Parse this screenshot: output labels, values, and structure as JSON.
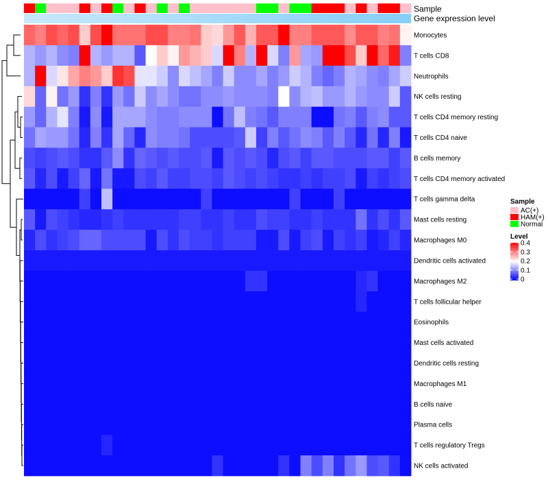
{
  "chart_data": {
    "type": "heatmap",
    "annotation_rows": {
      "sample": "Sample",
      "gene": "Gene expression level"
    },
    "columns_sample": [
      "HAM(+)",
      "Normal",
      "AC(+)",
      "AC(+)",
      "AC(+)",
      "HAM(+)",
      "AC(+)",
      "HAM(+)",
      "Normal",
      "AC(+)",
      "HAM(+)",
      "AC(+)",
      "Normal",
      "AC(+)",
      "Normal",
      "AC(+)",
      "AC(+)",
      "AC(+)",
      "AC(+)",
      "AC(+)",
      "AC(+)",
      "Normal",
      "Normal",
      "AC(+)",
      "Normal",
      "Normal",
      "HAM(+)",
      "HAM(+)",
      "HAM(+)",
      "AC(+)",
      "HAM(+)",
      "AC(+)",
      "HAM(+)",
      "HAM(+)",
      "AC(+)"
    ],
    "rows": [
      "Monocytes",
      "T cells CD8",
      "Neutrophils",
      "NK cells resting",
      "T cells CD4 memory resting",
      "T cells CD4 naive",
      "B cells memory",
      "T cells CD4 memory activated",
      "T cells gamma delta",
      "Mast cells resting",
      "Macrophages M0",
      "Dendritic cells activated",
      "Macrophages M2",
      "T cells follicular helper",
      "Eosinophils",
      "Mast cells activated",
      "Dendritic cells resting",
      "Macrophages M1",
      "B cells naive",
      "Plasma cells",
      "T cells regulatory  Tregs",
      "NK cells activated"
    ],
    "values": [
      [
        0.32,
        0.3,
        0.34,
        0.32,
        0.34,
        0.24,
        0.34,
        0.4,
        0.31,
        0.31,
        0.31,
        0.34,
        0.34,
        0.3,
        0.3,
        0.31,
        0.24,
        0.23,
        0.28,
        0.33,
        0.26,
        0.33,
        0.33,
        0.4,
        0.3,
        0.3,
        0.33,
        0.33,
        0.33,
        0.29,
        0.33,
        0.33,
        0.3,
        0.31,
        0.21
      ],
      [
        0.14,
        0.12,
        0.14,
        0.11,
        0.1,
        0.4,
        0.14,
        0.12,
        0.14,
        0.14,
        0.07,
        0.2,
        0.24,
        0.21,
        0.28,
        0.26,
        0.24,
        0.17,
        0.4,
        0.3,
        0.14,
        0.4,
        0.17,
        0.1,
        0.28,
        0.13,
        0.12,
        0.4,
        0.4,
        0.34,
        0.24,
        0.4,
        0.32,
        0.38,
        0.1
      ],
      [
        0.14,
        0.4,
        0.17,
        0.22,
        0.27,
        0.3,
        0.28,
        0.24,
        0.36,
        0.34,
        0.18,
        0.18,
        0.16,
        0.11,
        0.17,
        0.15,
        0.13,
        0.1,
        0.16,
        0.11,
        0.11,
        0.13,
        0.1,
        0.12,
        0.16,
        0.14,
        0.1,
        0.08,
        0.1,
        0.14,
        0.13,
        0.11,
        0.1,
        0.13,
        0.16
      ],
      [
        0.23,
        0.08,
        0.21,
        0.09,
        0.12,
        0.04,
        0.1,
        0.04,
        0.12,
        0.09,
        0.16,
        0.11,
        0.13,
        0.11,
        0.09,
        0.09,
        0.11,
        0.11,
        0.12,
        0.11,
        0.11,
        0.11,
        0.1,
        0.2,
        0.11,
        0.14,
        0.15,
        0.12,
        0.12,
        0.14,
        0.12,
        0.11,
        0.11,
        0.16,
        0.07
      ],
      [
        0.12,
        0.08,
        0.14,
        0.18,
        0.1,
        0.02,
        0.11,
        0.02,
        0.13,
        0.13,
        0.13,
        0.11,
        0.1,
        0.1,
        0.11,
        0.11,
        0.11,
        0.01,
        0.09,
        0.15,
        0.1,
        0.09,
        0.07,
        0.1,
        0.1,
        0.1,
        0.01,
        0.01,
        0.09,
        0.1,
        0.07,
        0.1,
        0.11,
        0.07,
        0.07
      ],
      [
        0.09,
        0.13,
        0.12,
        0.12,
        0.09,
        0.03,
        0.1,
        0.04,
        0.13,
        0.08,
        0.03,
        0.11,
        0.1,
        0.1,
        0.09,
        0.06,
        0.06,
        0.06,
        0.06,
        0.07,
        0.16,
        0.05,
        0.1,
        0.07,
        0.09,
        0.11,
        0.1,
        0.07,
        0.1,
        0.07,
        0.03,
        0.09,
        0.03,
        0.1,
        0.02
      ],
      [
        0.06,
        0.05,
        0.06,
        0.07,
        0.06,
        0.04,
        0.04,
        0.07,
        0.11,
        0.04,
        0.08,
        0.07,
        0.06,
        0.07,
        0.06,
        0.06,
        0.07,
        0.02,
        0.07,
        0.06,
        0.07,
        0.06,
        0.03,
        0.06,
        0.07,
        0.05,
        0.07,
        0.07,
        0.06,
        0.06,
        0.06,
        0.07,
        0.07,
        0.05,
        0.07
      ],
      [
        0.07,
        0.03,
        0.06,
        0.02,
        0.05,
        0.08,
        0.02,
        0.09,
        0.02,
        0.02,
        0.06,
        0.05,
        0.07,
        0.05,
        0.05,
        0.06,
        0.06,
        0.05,
        0.07,
        0.06,
        0.05,
        0.06,
        0.05,
        0.04,
        0.04,
        0.05,
        0.04,
        0.05,
        0.05,
        0.06,
        0.02,
        0.05,
        0.04,
        0.05,
        0.06
      ],
      [
        0.01,
        0.01,
        0.01,
        0.01,
        0.01,
        0.05,
        0.01,
        0.15,
        0.01,
        0.01,
        0.01,
        0.01,
        0.01,
        0.01,
        0.01,
        0.01,
        0.05,
        0.01,
        0.01,
        0.01,
        0.01,
        0.01,
        0.01,
        0.01,
        0.05,
        0.01,
        0.01,
        0.01,
        0.05,
        0.01,
        0.01,
        0.01,
        0.01,
        0.01,
        0.01
      ],
      [
        0.07,
        0.02,
        0.06,
        0.05,
        0.04,
        0.03,
        0.03,
        0.04,
        0.05,
        0.04,
        0.04,
        0.04,
        0.04,
        0.04,
        0.05,
        0.05,
        0.04,
        0.04,
        0.05,
        0.04,
        0.04,
        0.06,
        0.05,
        0.05,
        0.04,
        0.04,
        0.05,
        0.04,
        0.04,
        0.04,
        0.09,
        0.04,
        0.06,
        0.04,
        0.07
      ],
      [
        0.03,
        0.06,
        0.04,
        0.05,
        0.06,
        0.08,
        0.08,
        0.06,
        0.06,
        0.06,
        0.06,
        0.02,
        0.06,
        0.04,
        0.06,
        0.05,
        0.05,
        0.04,
        0.05,
        0.05,
        0.05,
        0.02,
        0.02,
        0.06,
        0.02,
        0.05,
        0.06,
        0.02,
        0.05,
        0.04,
        0.05,
        0.02,
        0.03,
        0.05,
        0.03
      ],
      [
        0.02,
        0.02,
        0.02,
        0.02,
        0.02,
        0.02,
        0.02,
        0.02,
        0.02,
        0.02,
        0.02,
        0.02,
        0.02,
        0.02,
        0.02,
        0.02,
        0.02,
        0.02,
        0.02,
        0.02,
        0.02,
        0.02,
        0.02,
        0.02,
        0.02,
        0.02,
        0.02,
        0.02,
        0.02,
        0.02,
        0.02,
        0.02,
        0.02,
        0.02,
        0.02
      ],
      [
        0.01,
        0.01,
        0.01,
        0.01,
        0.01,
        0.01,
        0.01,
        0.01,
        0.01,
        0.01,
        0.01,
        0.01,
        0.01,
        0.01,
        0.01,
        0.01,
        0.01,
        0.01,
        0.01,
        0.01,
        0.04,
        0.04,
        0.01,
        0.01,
        0.01,
        0.01,
        0.01,
        0.01,
        0.01,
        0.01,
        0.03,
        0.04,
        0.01,
        0.01,
        0.01
      ],
      [
        0.01,
        0.01,
        0.01,
        0.01,
        0.01,
        0.01,
        0.01,
        0.01,
        0.01,
        0.01,
        0.01,
        0.01,
        0.01,
        0.01,
        0.01,
        0.01,
        0.01,
        0.01,
        0.01,
        0.01,
        0.01,
        0.01,
        0.01,
        0.01,
        0.01,
        0.01,
        0.01,
        0.01,
        0.01,
        0.01,
        0.03,
        0.01,
        0.01,
        0.01,
        0.01
      ],
      [
        0.01,
        0.01,
        0.01,
        0.01,
        0.01,
        0.01,
        0.01,
        0.01,
        0.01,
        0.01,
        0.01,
        0.01,
        0.01,
        0.01,
        0.01,
        0.01,
        0.01,
        0.01,
        0.01,
        0.01,
        0.01,
        0.01,
        0.01,
        0.01,
        0.01,
        0.01,
        0.01,
        0.01,
        0.01,
        0.01,
        0.01,
        0.01,
        0.01,
        0.01,
        0.01
      ],
      [
        0.01,
        0.01,
        0.01,
        0.01,
        0.01,
        0.01,
        0.01,
        0.01,
        0.01,
        0.01,
        0.01,
        0.01,
        0.01,
        0.01,
        0.01,
        0.01,
        0.01,
        0.01,
        0.01,
        0.01,
        0.01,
        0.01,
        0.01,
        0.01,
        0.01,
        0.01,
        0.01,
        0.01,
        0.01,
        0.01,
        0.01,
        0.01,
        0.01,
        0.01,
        0.01
      ],
      [
        0.01,
        0.01,
        0.01,
        0.01,
        0.01,
        0.01,
        0.01,
        0.01,
        0.01,
        0.01,
        0.01,
        0.01,
        0.01,
        0.01,
        0.01,
        0.01,
        0.01,
        0.01,
        0.01,
        0.01,
        0.01,
        0.01,
        0.01,
        0.01,
        0.01,
        0.01,
        0.01,
        0.01,
        0.01,
        0.01,
        0.01,
        0.01,
        0.01,
        0.01,
        0.01
      ],
      [
        0.01,
        0.01,
        0.01,
        0.01,
        0.01,
        0.01,
        0.01,
        0.01,
        0.01,
        0.01,
        0.01,
        0.01,
        0.01,
        0.01,
        0.01,
        0.01,
        0.01,
        0.01,
        0.01,
        0.01,
        0.01,
        0.01,
        0.01,
        0.01,
        0.01,
        0.01,
        0.01,
        0.01,
        0.01,
        0.01,
        0.01,
        0.01,
        0.01,
        0.01,
        0.01
      ],
      [
        0.01,
        0.01,
        0.01,
        0.01,
        0.01,
        0.01,
        0.01,
        0.01,
        0.01,
        0.01,
        0.01,
        0.01,
        0.01,
        0.01,
        0.01,
        0.01,
        0.01,
        0.01,
        0.01,
        0.01,
        0.01,
        0.01,
        0.01,
        0.01,
        0.01,
        0.01,
        0.01,
        0.01,
        0.01,
        0.01,
        0.01,
        0.01,
        0.01,
        0.01,
        0.01
      ],
      [
        0.01,
        0.01,
        0.01,
        0.01,
        0.01,
        0.01,
        0.01,
        0.01,
        0.01,
        0.01,
        0.01,
        0.01,
        0.01,
        0.01,
        0.01,
        0.01,
        0.01,
        0.01,
        0.01,
        0.01,
        0.01,
        0.01,
        0.01,
        0.01,
        0.01,
        0.01,
        0.01,
        0.01,
        0.01,
        0.01,
        0.01,
        0.01,
        0.01,
        0.01,
        0.01
      ],
      [
        0.01,
        0.01,
        0.01,
        0.01,
        0.01,
        0.01,
        0.01,
        0.03,
        0.01,
        0.01,
        0.01,
        0.01,
        0.01,
        0.01,
        0.01,
        0.01,
        0.01,
        0.01,
        0.01,
        0.01,
        0.01,
        0.01,
        0.01,
        0.01,
        0.01,
        0.01,
        0.01,
        0.01,
        0.01,
        0.01,
        0.01,
        0.01,
        0.01,
        0.01,
        0.01
      ],
      [
        0.01,
        0.01,
        0.01,
        0.01,
        0.01,
        0.01,
        0.01,
        0.01,
        0.01,
        0.01,
        0.01,
        0.01,
        0.01,
        0.01,
        0.01,
        0.01,
        0.01,
        0.04,
        0.01,
        0.01,
        0.01,
        0.01,
        0.01,
        0.04,
        0.01,
        0.1,
        0.06,
        0.1,
        0.04,
        0.09,
        0.12,
        0.06,
        0.07,
        0.04,
        0.01
      ]
    ],
    "legend": {
      "sample_title": "Sample",
      "sample_entries": [
        {
          "label": "AC(+)",
          "color": "#ffc0cb"
        },
        {
          "label": "HAM(+)",
          "color": "#ff0000"
        },
        {
          "label": "Normal",
          "color": "#00ff00"
        }
      ],
      "level_title": "Level",
      "level_ticks": [
        "0.4",
        "0.3",
        "0.2",
        "0.1",
        "0"
      ],
      "level_range": [
        0,
        0.4
      ]
    },
    "colors": {
      "low": "#0000ff",
      "mid": "#ffffff",
      "high": "#ff0000",
      "gene_bar": "#87cefa",
      "gene_bar_light": "#c8e8fa"
    }
  }
}
